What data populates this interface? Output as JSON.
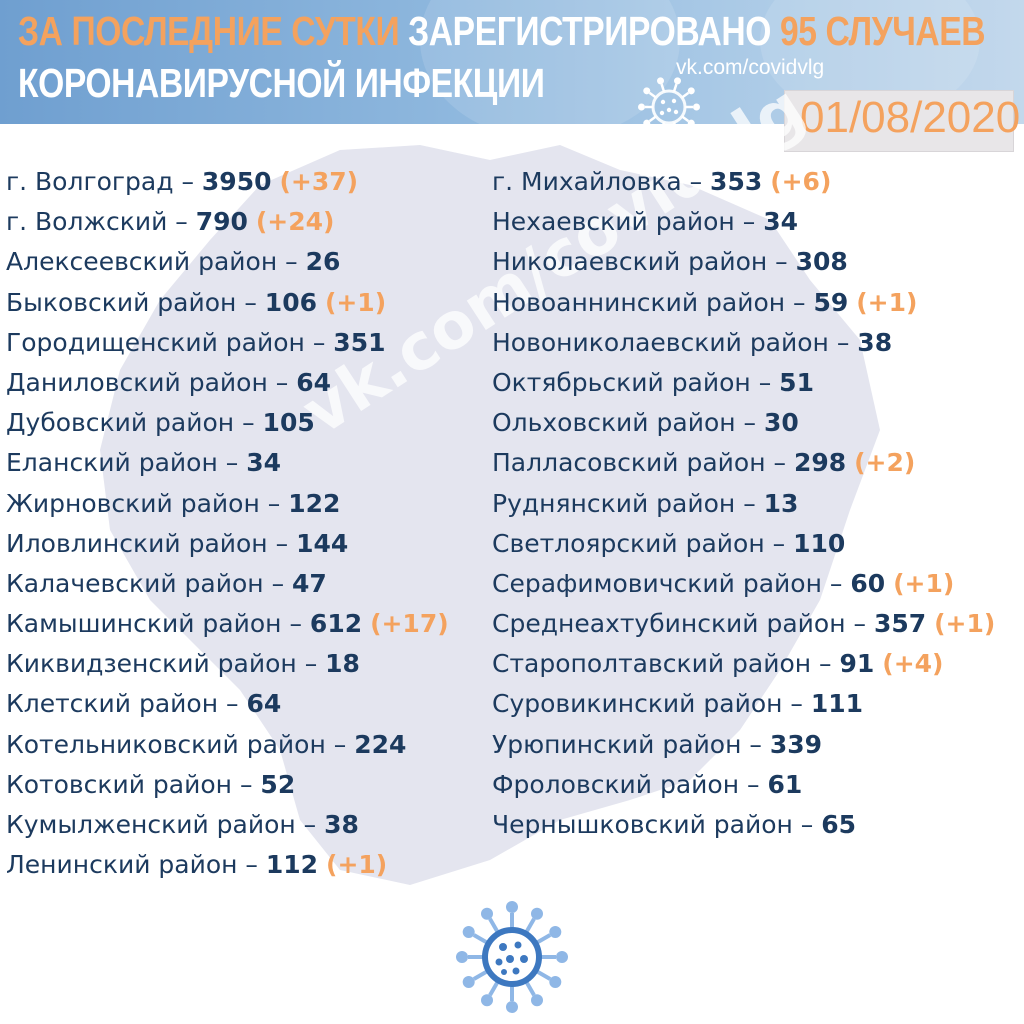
{
  "header": {
    "headline_part1": "ЗА ПОСЛЕДНИЕ СУТКИ",
    "headline_part2": "ЗАРЕГИСТРИРОВАНО",
    "headline_part3": "95 СЛУЧАЕВ",
    "headline_line2": "КОРОНАВИРУСНОЙ ИНФЕКЦИИ",
    "site": "vk.com/covidvlg",
    "date": "01/08/2020"
  },
  "watermark": "vk.com/covidvlg",
  "colors": {
    "accent": "#f4a25e",
    "text": "#1c3a5e",
    "header_bg": "#7ea9d6",
    "virus": "#3d78c0"
  },
  "icons": {
    "header": "coronavirus-icon",
    "bottom": "coronavirus-icon"
  },
  "districts_left": [
    {
      "name": "г. Волгоград",
      "count": "3950",
      "increase": "(+37)"
    },
    {
      "name": "г. Волжский",
      "count": "790",
      "increase": "(+24)"
    },
    {
      "name": "Алексеевский район",
      "count": "26",
      "increase": ""
    },
    {
      "name": "Быковский район",
      "count": "106",
      "increase": "(+1)"
    },
    {
      "name": "Городищенский район",
      "count": "351",
      "increase": ""
    },
    {
      "name": "Даниловский район",
      "count": "64",
      "increase": ""
    },
    {
      "name": "Дубовский район",
      "count": "105",
      "increase": ""
    },
    {
      "name": "Еланский район",
      "count": "34",
      "increase": ""
    },
    {
      "name": "Жирновский район",
      "count": "122",
      "increase": ""
    },
    {
      "name": "Иловлинский район",
      "count": "144",
      "increase": ""
    },
    {
      "name": "Калачевский район",
      "count": "47",
      "increase": ""
    },
    {
      "name": "Камышинский район",
      "count": "612",
      "increase": "(+17)"
    },
    {
      "name": "Киквидзенский район",
      "count": "18",
      "increase": ""
    },
    {
      "name": "Клетский район",
      "count": "64",
      "increase": ""
    },
    {
      "name": "Котельниковский район",
      "count": "224",
      "increase": ""
    },
    {
      "name": "Котовский район",
      "count": "52",
      "increase": ""
    },
    {
      "name": "Кумылженский район",
      "count": "38",
      "increase": ""
    },
    {
      "name": "Ленинский район",
      "count": "112",
      "increase": "(+1)"
    }
  ],
  "districts_right": [
    {
      "name": "г. Михайловка",
      "count": "353",
      "increase": "(+6)"
    },
    {
      "name": "Нехаевский район",
      "count": "34",
      "increase": ""
    },
    {
      "name": "Николаевский район",
      "count": "308",
      "increase": ""
    },
    {
      "name": "Новоаннинский район",
      "count": "59",
      "increase": "(+1)"
    },
    {
      "name": "Новониколаевский район",
      "count": "38",
      "increase": ""
    },
    {
      "name": "Октябрьский район",
      "count": "51",
      "increase": ""
    },
    {
      "name": "Ольховский район",
      "count": "30",
      "increase": ""
    },
    {
      "name": "Палласовский район",
      "count": "298",
      "increase": "(+2)"
    },
    {
      "name": "Руднянский район",
      "count": "13",
      "increase": ""
    },
    {
      "name": "Светлоярский район",
      "count": "110",
      "increase": ""
    },
    {
      "name": "Серафимовичский район",
      "count": "60",
      "increase": "(+1)"
    },
    {
      "name": "Среднеахтубинский район",
      "count": "357",
      "increase": "(+1)"
    },
    {
      "name": "Старополтавский район",
      "count": "91",
      "increase": "(+4)"
    },
    {
      "name": "Суровикинский район",
      "count": "111",
      "increase": ""
    },
    {
      "name": "Урюпинский район",
      "count": "339",
      "increase": ""
    },
    {
      "name": "Фроловский район",
      "count": "61",
      "increase": ""
    },
    {
      "name": "Чернышковский район",
      "count": "65",
      "increase": ""
    }
  ]
}
